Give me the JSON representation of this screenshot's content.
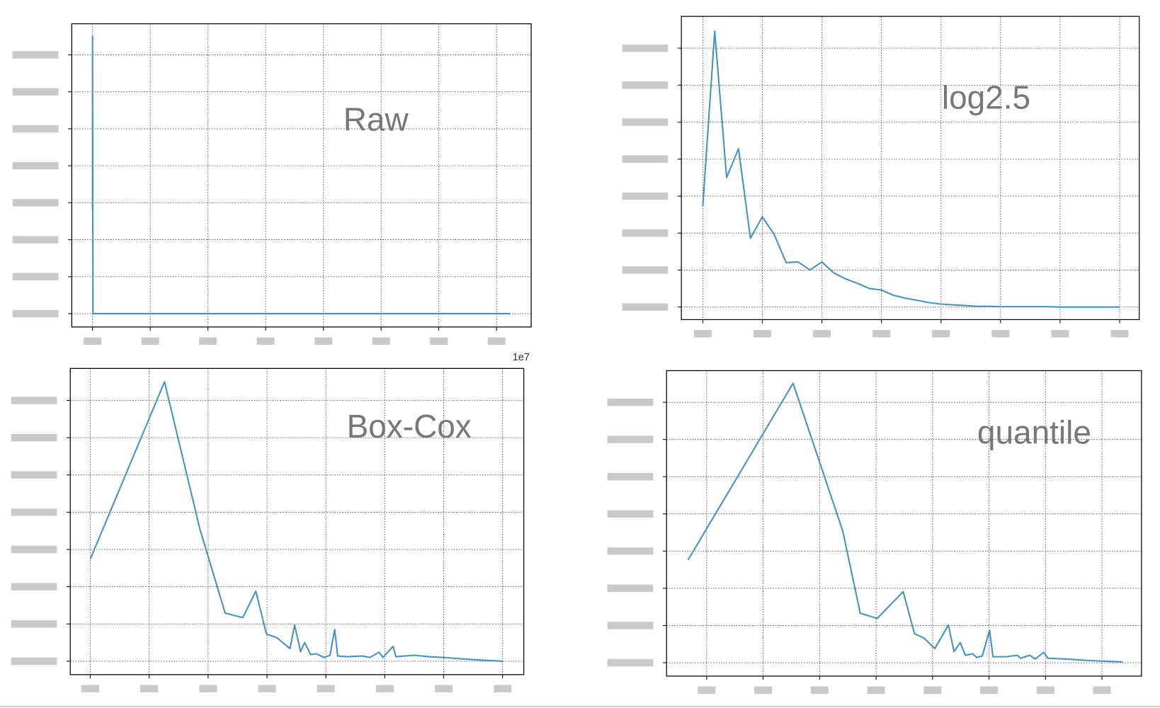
{
  "chart_data": [
    {
      "type": "line",
      "title": "Raw",
      "x_offset_label": "1e7",
      "color": "#4393c3",
      "x": [
        0,
        0,
        0.002,
        1.81
      ],
      "values": [
        2.8,
        7.5,
        0,
        0
      ],
      "xlim": [
        -0.09,
        1.9
      ],
      "ylim": [
        -0.36,
        7.84
      ],
      "xticks": [
        0,
        0.25,
        0.5,
        0.75,
        1,
        1.25,
        1.5,
        1.75
      ],
      "yticks": [
        0,
        1,
        2,
        3,
        4,
        5,
        6,
        7
      ],
      "grid": true
    },
    {
      "type": "line",
      "title": "log2.5",
      "color": "#4393c3",
      "x": [
        0,
        0.2,
        0.4,
        0.6,
        0.8,
        1,
        1.2,
        1.4,
        1.6,
        1.8,
        2,
        2.2,
        2.4,
        2.6,
        2.8,
        3,
        3.2,
        3.4,
        3.6,
        3.8,
        4,
        4.2,
        4.4,
        4.6,
        4.8,
        5,
        5.2,
        5.4,
        5.6,
        5.8,
        6,
        6.2,
        6.4,
        6.6,
        6.8,
        7
      ],
      "values": [
        2.72,
        7.46,
        3.5,
        4.28,
        1.86,
        2.44,
        1.96,
        1.2,
        1.22,
        1.0,
        1.22,
        0.92,
        0.76,
        0.64,
        0.5,
        0.46,
        0.32,
        0.24,
        0.18,
        0.12,
        0.08,
        0.06,
        0.04,
        0.02,
        0.02,
        0.01,
        0.01,
        0.01,
        0.01,
        0.01,
        0,
        0,
        0,
        0,
        0,
        0
      ],
      "xlim": [
        -0.36,
        7.33
      ],
      "ylim": [
        -0.34,
        7.86
      ],
      "xticks": [
        0,
        1,
        2,
        3,
        4,
        5,
        6,
        7
      ],
      "yticks": [
        0,
        1,
        2,
        3,
        4,
        5,
        6,
        7
      ],
      "grid": true
    },
    {
      "type": "line",
      "title": "Box-Cox",
      "color": "#4393c3",
      "x": [
        0,
        1.26,
        1.86,
        2.29,
        2.59,
        2.81,
        2.99,
        3.17,
        3.39,
        3.47,
        3.57,
        3.64,
        3.74,
        3.84,
        3.97,
        4.07,
        4.15,
        4.2,
        4.37,
        4.62,
        4.75,
        4.9,
        4.97,
        5.14,
        5.19,
        5.5,
        5.75,
        6.0,
        6.51,
        7.0
      ],
      "values": [
        2.74,
        7.5,
        3.55,
        1.29,
        1.17,
        1.88,
        0.73,
        0.63,
        0.34,
        0.97,
        0.26,
        0.5,
        0.18,
        0.2,
        0.1,
        0.16,
        0.85,
        0.14,
        0.12,
        0.14,
        0.1,
        0.24,
        0.1,
        0.4,
        0.12,
        0.16,
        0.12,
        0.1,
        0.04,
        0
      ],
      "xlim": [
        -0.34,
        7.36
      ],
      "ylim": [
        -0.36,
        7.86
      ],
      "xticks": [
        0,
        1,
        2,
        3,
        4,
        5,
        6,
        7
      ],
      "yticks": [
        0,
        1,
        2,
        3,
        4,
        5,
        6,
        7
      ],
      "grid": true
    },
    {
      "type": "line",
      "title": "quantile",
      "color": "#4393c3",
      "x": [
        -0.33,
        1.53,
        2.41,
        2.72,
        3.02,
        3.48,
        3.68,
        3.85,
        4.04,
        4.28,
        4.38,
        4.49,
        4.58,
        4.71,
        4.78,
        4.88,
        5.01,
        5.07,
        5.3,
        5.5,
        5.56,
        5.72,
        5.82,
        5.97,
        6.04,
        6.35,
        6.74,
        7.37
      ],
      "values": [
        2.76,
        7.51,
        3.54,
        1.33,
        1.19,
        1.91,
        0.78,
        0.66,
        0.38,
        1.01,
        0.3,
        0.54,
        0.2,
        0.24,
        0.14,
        0.18,
        0.87,
        0.16,
        0.16,
        0.2,
        0.12,
        0.2,
        0.1,
        0.28,
        0.12,
        0.1,
        0.06,
        0.02
      ],
      "xlim": [
        -0.71,
        7.7
      ],
      "ylim": [
        -0.36,
        7.85
      ],
      "xticks": [
        0,
        1,
        2,
        3,
        4,
        5,
        6,
        7
      ],
      "yticks": [
        0,
        1,
        2,
        3,
        4,
        5,
        6,
        7
      ],
      "grid": true
    }
  ]
}
